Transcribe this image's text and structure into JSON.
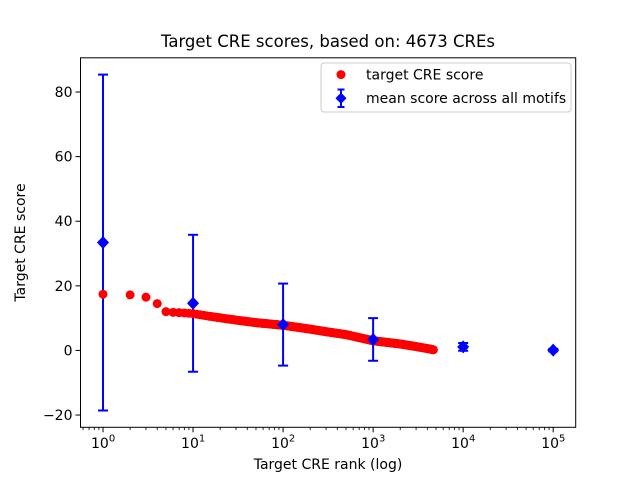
{
  "figure": {
    "background": "#ffffff"
  },
  "chart_data": {
    "type": "scatter",
    "title": "Target CRE scores, based on: 4673 CREs",
    "xlabel": "Target CRE rank (log)",
    "ylabel": "Target CRE score",
    "xscale": "log",
    "grid": false,
    "xlim": [
      0.5623,
      177828
    ],
    "ylim": [
      -23.8,
      90.6
    ],
    "x_tick_values": [
      1,
      10,
      100,
      1000,
      10000,
      100000
    ],
    "x_tick_exponents": [
      "0",
      "1",
      "2",
      "3",
      "4",
      "5"
    ],
    "x_tick_base": "10",
    "y_tick_values": [
      -20,
      0,
      20,
      40,
      60,
      80
    ],
    "y_tick_labels": [
      "−20",
      "0",
      "20",
      "40",
      "60",
      "80"
    ],
    "n_cres": 4673,
    "colors": {
      "target": "#ff0000",
      "mean": "#0000ff"
    },
    "series": [
      {
        "name": "target CRE score",
        "type": "scatter",
        "marker": "circle",
        "color": "#ff0000",
        "n_points": 4673,
        "x_range": [
          1,
          4673
        ],
        "anchors": [
          [
            1,
            17.4
          ],
          [
            2,
            17.2
          ],
          [
            3,
            16.5
          ],
          [
            4,
            14.5
          ],
          [
            5,
            12.0
          ],
          [
            6,
            11.8
          ],
          [
            8,
            11.6
          ],
          [
            10,
            11.4
          ],
          [
            15,
            10.6
          ],
          [
            20,
            10.1
          ],
          [
            30,
            9.4
          ],
          [
            50,
            8.6
          ],
          [
            100,
            7.8
          ],
          [
            200,
            6.6
          ],
          [
            300,
            5.8
          ],
          [
            500,
            4.9
          ],
          [
            1000,
            3.0
          ],
          [
            2000,
            2.0
          ],
          [
            3000,
            1.2
          ],
          [
            4000,
            0.6
          ],
          [
            4673,
            0.2
          ]
        ]
      },
      {
        "name": "mean score across all motifs",
        "type": "errorbar",
        "marker": "diamond",
        "color": "#0000ff",
        "points": [
          {
            "x": 1,
            "y": 33.4,
            "err": 52.0
          },
          {
            "x": 10,
            "y": 14.6,
            "err": 21.2
          },
          {
            "x": 100,
            "y": 8.0,
            "err": 12.7
          },
          {
            "x": 1000,
            "y": 3.4,
            "err": 6.6
          },
          {
            "x": 10000,
            "y": 1.1,
            "err": 1.2
          },
          {
            "x": 100000,
            "y": 0.1,
            "err": 0.4
          }
        ]
      }
    ],
    "legend": {
      "position": "upper right",
      "entries": [
        "target CRE score",
        "mean score across all motifs"
      ],
      "border_color": "#cccccc"
    }
  }
}
